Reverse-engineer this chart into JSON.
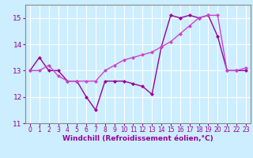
{
  "series1": {
    "x": [
      0,
      1,
      2,
      3,
      4,
      5,
      6,
      7,
      8,
      9,
      10,
      11,
      12,
      13,
      14,
      15,
      16,
      17,
      18,
      19,
      20,
      21,
      22,
      23
    ],
    "y": [
      13.0,
      13.5,
      13.0,
      13.0,
      12.6,
      12.6,
      12.0,
      11.5,
      12.6,
      12.6,
      12.6,
      12.5,
      12.4,
      12.1,
      13.9,
      15.1,
      15.0,
      15.1,
      15.0,
      15.1,
      14.3,
      13.0,
      13.0,
      13.0
    ],
    "color": "#990099",
    "marker": "D",
    "markersize": 2,
    "linewidth": 1.0
  },
  "series2": {
    "x": [
      0,
      1,
      2,
      3,
      4,
      5,
      6,
      7,
      8,
      9,
      10,
      11,
      12,
      13,
      14,
      15,
      16,
      17,
      18,
      19,
      20,
      21,
      22,
      23
    ],
    "y": [
      13.0,
      13.0,
      13.2,
      12.8,
      12.6,
      12.6,
      12.6,
      12.6,
      13.0,
      13.2,
      13.4,
      13.5,
      13.6,
      13.7,
      13.9,
      14.1,
      14.4,
      14.7,
      15.0,
      15.1,
      15.1,
      13.0,
      13.0,
      13.1
    ],
    "color": "#cc44cc",
    "marker": "D",
    "markersize": 2,
    "linewidth": 1.0
  },
  "background_color": "#cceeff",
  "grid_color": "#ffffff",
  "xlabel": "Windchill (Refroidissement éolien,°C)",
  "xlabel_color": "#990099",
  "xlabel_fontsize": 6.5,
  "xtick_labels": [
    "0",
    "1",
    "2",
    "3",
    "4",
    "5",
    "6",
    "7",
    "8",
    "9",
    "10",
    "11",
    "12",
    "13",
    "14",
    "15",
    "16",
    "17",
    "18",
    "19",
    "20",
    "21",
    "22",
    "23"
  ],
  "xtick_fontsize": 5.5,
  "ytick_fontsize": 6.5,
  "ylim": [
    11.0,
    15.5
  ],
  "xlim": [
    -0.5,
    23.5
  ],
  "yticks": [
    11,
    12,
    13,
    14,
    15
  ],
  "tick_color": "#990099",
  "spine_color": "#888888"
}
